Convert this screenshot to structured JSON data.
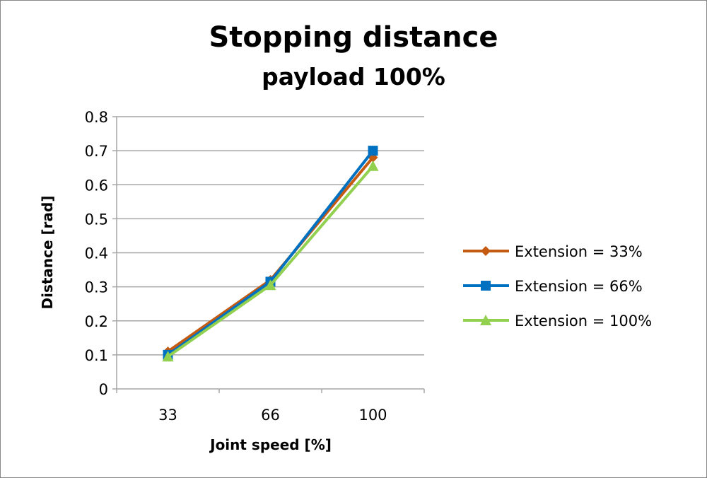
{
  "chart_data": {
    "type": "line",
    "title": "Stopping distance",
    "subtitle": "payload 100%",
    "xlabel": "Joint speed [%]",
    "ylabel": "Distance [rad]",
    "categories": [
      "33",
      "66",
      "100"
    ],
    "ylim": [
      0,
      0.8
    ],
    "yticks": [
      "0",
      "0.1",
      "0.2",
      "0.3",
      "0.4",
      "0.5",
      "0.6",
      "0.7",
      "0.8"
    ],
    "grid": true,
    "legend_position": "right",
    "series": [
      {
        "name": "Extension = 33%",
        "values": [
          0.11,
          0.32,
          0.68
        ],
        "color": "#C55A11",
        "marker": "diamond"
      },
      {
        "name": "Extension = 66%",
        "values": [
          0.1,
          0.315,
          0.7
        ],
        "color": "#0070C0",
        "marker": "square"
      },
      {
        "name": "Extension = 100%",
        "values": [
          0.095,
          0.305,
          0.655
        ],
        "color": "#92D050",
        "marker": "triangle"
      }
    ]
  }
}
